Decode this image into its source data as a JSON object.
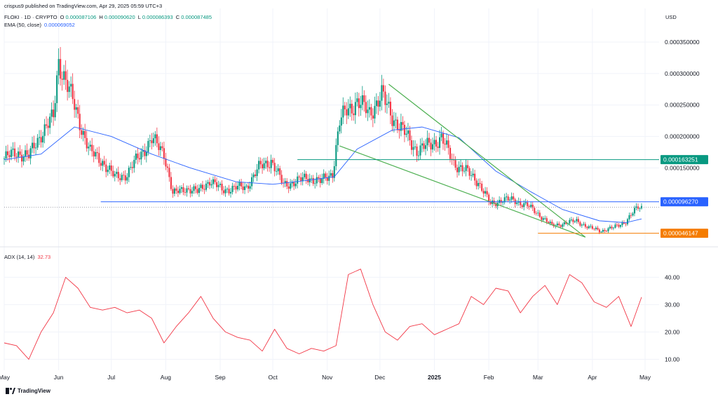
{
  "header": {
    "published": "crispus9 published on TradingView.com, Apr 29, 2025 05:59 UTC+3",
    "symbol": "FLOKI · 1D · CRYPTO",
    "o_label": "O",
    "o": "0.000087106",
    "h_label": "H",
    "h": "0.000090620",
    "l_label": "L",
    "l": "0.000086393",
    "c_label": "C",
    "c": "0.000087485",
    "ema_label": "EMA (50, close)",
    "ema_value": "0.000069052",
    "currency": "USD"
  },
  "adx": {
    "label": "ADX (14, 14)",
    "value": "32.73"
  },
  "brand": {
    "name": "TradingView"
  },
  "colors": {
    "up": "#089981",
    "down": "#f23645",
    "ema": "#2962ff",
    "wedge": "#4caf50",
    "level_green": "#089981",
    "level_blue": "#2962ff",
    "level_orange": "#f57c00",
    "adx": "#f23645",
    "grid": "#f0f3fa"
  },
  "chart_data": [
    {
      "type": "candlestick",
      "title": "FLOKI · 1D · CRYPTO",
      "ylabel": "USD",
      "ylim": [
        3.8e-05,
        0.00037
      ],
      "xlim": [
        "2024-05-01",
        "2025-05-05"
      ],
      "y_ticks": [
        "0.000350000",
        "0.000300000",
        "0.000250000",
        "0.000200000",
        "0.000150000"
      ],
      "y_tick_values": [
        0.00035,
        0.0003,
        0.00025,
        0.0002,
        0.00015
      ],
      "x_tick_labels": [
        "May",
        "Jun",
        "Jul",
        "Aug",
        "Sep",
        "Oct",
        "Nov",
        "Dec",
        "2025",
        "Feb",
        "Mar",
        "Apr",
        "May"
      ],
      "x_tick_dates": [
        "2024-05-01",
        "2024-06-01",
        "2024-07-01",
        "2024-08-01",
        "2024-09-01",
        "2024-10-01",
        "2024-11-01",
        "2024-12-01",
        "2025-01-01",
        "2025-02-01",
        "2025-03-01",
        "2025-04-01",
        "2025-05-01"
      ],
      "price_path_dates": [
        "2024-05-01",
        "2024-05-08",
        "2024-05-15",
        "2024-05-22",
        "2024-05-29",
        "2024-06-01",
        "2024-06-05",
        "2024-06-12",
        "2024-06-19",
        "2024-06-26",
        "2024-07-03",
        "2024-07-10",
        "2024-07-17",
        "2024-07-24",
        "2024-07-31",
        "2024-08-05",
        "2024-08-12",
        "2024-08-19",
        "2024-08-26",
        "2024-09-02",
        "2024-09-09",
        "2024-09-16",
        "2024-09-23",
        "2024-09-30",
        "2024-10-07",
        "2024-10-14",
        "2024-10-21",
        "2024-10-28",
        "2024-11-04",
        "2024-11-08",
        "2024-11-12",
        "2024-11-18",
        "2024-11-25",
        "2024-12-02",
        "2024-12-08",
        "2024-12-15",
        "2024-12-22",
        "2024-12-29",
        "2025-01-05",
        "2025-01-12",
        "2025-01-19",
        "2025-01-26",
        "2025-02-02",
        "2025-02-09",
        "2025-02-16",
        "2025-02-23",
        "2025-03-02",
        "2025-03-09",
        "2025-03-16",
        "2025-03-23",
        "2025-03-30",
        "2025-04-06",
        "2025-04-13",
        "2025-04-20",
        "2025-04-27",
        "2025-04-29"
      ],
      "price_path_close": [
        0.000165,
        0.000175,
        0.000168,
        0.000205,
        0.00023,
        0.00032,
        0.00029,
        0.00023,
        0.000175,
        0.00016,
        0.000135,
        0.00014,
        0.00017,
        0.000195,
        0.000175,
        0.000108,
        0.000118,
        0.000112,
        0.00013,
        0.000115,
        0.000118,
        0.00012,
        0.00015,
        0.000162,
        0.000123,
        0.000128,
        0.000135,
        0.000128,
        0.000142,
        0.000222,
        0.000242,
        0.000255,
        0.000238,
        0.000265,
        0.000232,
        0.000205,
        0.000178,
        0.000186,
        0.000198,
        0.000158,
        0.000145,
        0.000128,
        9.2e-05,
        0.0001,
        9.8e-05,
        9e-05,
        7.5e-05,
        5.8e-05,
        6.2e-05,
        6.6e-05,
        5.5e-05,
        5e-05,
        5.5e-05,
        6.5e-05,
        8.8e-05,
        8.7485e-05
      ],
      "ema_dates": [
        "2024-05-01",
        "2024-05-22",
        "2024-06-10",
        "2024-07-01",
        "2024-07-24",
        "2024-08-15",
        "2024-09-10",
        "2024-10-01",
        "2024-10-20",
        "2024-11-05",
        "2024-11-18",
        "2024-12-08",
        "2024-12-25",
        "2025-01-15",
        "2025-02-05",
        "2025-02-25",
        "2025-03-15",
        "2025-04-05",
        "2025-04-20",
        "2025-04-29"
      ],
      "ema_values": [
        0.000163,
        0.000172,
        0.000215,
        0.0002,
        0.000172,
        0.00015,
        0.000128,
        0.000124,
        0.00013,
        0.000136,
        0.00018,
        0.00021,
        0.000215,
        0.000198,
        0.000145,
        0.000112,
        8.4e-05,
        6.6e-05,
        6.3e-05,
        6.9052e-05
      ],
      "horizontal_levels": [
        {
          "value": 0.000163251,
          "label": "0.000163251",
          "color": "#089981",
          "from": "2024-10-15"
        },
        {
          "value": 9.627e-05,
          "label": "0.000096270",
          "color": "#2962ff",
          "from": "2024-06-25"
        },
        {
          "value": 4.6147e-05,
          "label": "0.000046147",
          "color": "#f57c00",
          "from": "2025-03-01"
        }
      ],
      "current_price_line": 8.7485e-05,
      "falling_wedge": {
        "upper": [
          [
            "2024-12-06",
            0.000283
          ],
          [
            "2025-03-28",
            4e-05
          ]
        ],
        "lower": [
          [
            "2024-11-08",
            0.000185
          ],
          [
            "2025-03-28",
            4e-05
          ]
        ]
      }
    },
    {
      "type": "line",
      "title": "ADX (14, 14)",
      "ylim": [
        6.0,
        46.0
      ],
      "y_ticks": [
        "40.00",
        "30.00",
        "20.00",
        "10.00"
      ],
      "y_tick_values": [
        40,
        30,
        20,
        10
      ],
      "adx_dates": [
        "2024-05-01",
        "2024-05-08",
        "2024-05-15",
        "2024-05-22",
        "2024-05-29",
        "2024-06-05",
        "2024-06-12",
        "2024-06-19",
        "2024-06-26",
        "2024-07-03",
        "2024-07-10",
        "2024-07-17",
        "2024-07-24",
        "2024-07-31",
        "2024-08-07",
        "2024-08-14",
        "2024-08-21",
        "2024-08-28",
        "2024-09-04",
        "2024-09-11",
        "2024-09-18",
        "2024-09-25",
        "2024-10-02",
        "2024-10-09",
        "2024-10-16",
        "2024-10-23",
        "2024-10-30",
        "2024-11-06",
        "2024-11-13",
        "2024-11-20",
        "2024-11-27",
        "2024-12-04",
        "2024-12-11",
        "2024-12-18",
        "2024-12-25",
        "2025-01-01",
        "2025-01-08",
        "2025-01-15",
        "2025-01-22",
        "2025-01-29",
        "2025-02-05",
        "2025-02-12",
        "2025-02-19",
        "2025-02-26",
        "2025-03-05",
        "2025-03-12",
        "2025-03-19",
        "2025-03-26",
        "2025-04-02",
        "2025-04-09",
        "2025-04-16",
        "2025-04-23",
        "2025-04-29"
      ],
      "adx_values": [
        16,
        15,
        10,
        20,
        27,
        40,
        36,
        29,
        28,
        29,
        27,
        28,
        25,
        16,
        22,
        27,
        33,
        25,
        20,
        18,
        17,
        13,
        21,
        14,
        12,
        14,
        13,
        15,
        41,
        43,
        30,
        20,
        17,
        22,
        23,
        19,
        21,
        23,
        33,
        30,
        36,
        35,
        27,
        33,
        37,
        30,
        41,
        38,
        31,
        29,
        33,
        22,
        32.73
      ],
      "series": [
        {
          "name": "ADX (14, 14)"
        }
      ]
    }
  ]
}
